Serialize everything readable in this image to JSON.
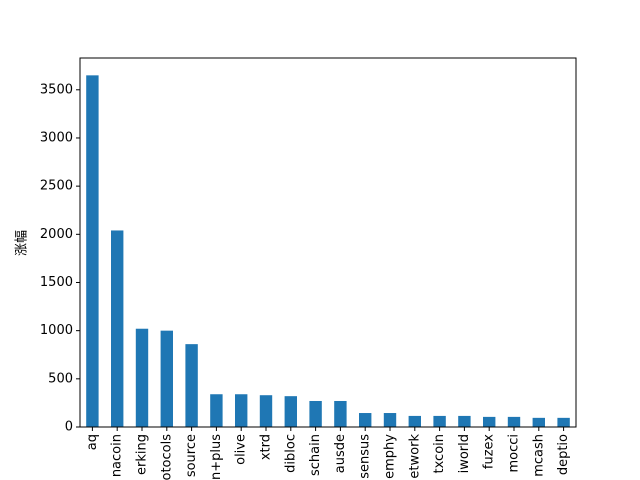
{
  "chart_data": {
    "type": "bar",
    "y_label": "涨幅",
    "categories": [
      "aq",
      "nacoin",
      "erking",
      "otocols",
      "source",
      "n+plus",
      "olive",
      "xtrd",
      "dibloc",
      "schain",
      "ausde",
      "sensus",
      "emphy",
      "etwork",
      "txcoin",
      "iworld",
      "fuzex",
      "mocci",
      "mcash",
      "deptio"
    ],
    "values": [
      3650,
      2040,
      1020,
      1000,
      860,
      340,
      340,
      330,
      320,
      270,
      270,
      145,
      145,
      115,
      115,
      115,
      105,
      105,
      95,
      95
    ],
    "color": "#1f77b4",
    "ylim": [
      0,
      3830
    ],
    "yticks": [
      0,
      500,
      1000,
      1500,
      2000,
      2500,
      3000,
      3500
    ],
    "grid": false
  }
}
